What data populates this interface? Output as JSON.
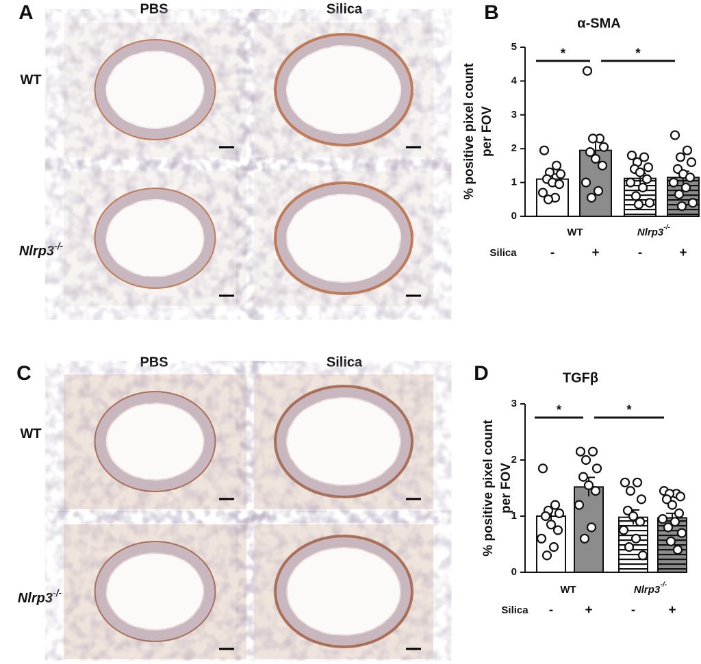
{
  "panels": [
    {
      "letter": "A",
      "columns": [
        "PBS",
        "Silica"
      ],
      "rows": [
        {
          "label": "WT"
        },
        {
          "label": "Nlrp3",
          "superscript": "-/-"
        }
      ]
    },
    {
      "letter": "C",
      "columns": [
        "PBS",
        "Silica"
      ],
      "rows": [
        {
          "label": "WT"
        },
        {
          "label": "Nlrp3",
          "superscript": "-/-"
        }
      ]
    }
  ],
  "chart_data": [
    {
      "type": "bar",
      "panel": "B",
      "title": "α-SMA",
      "ylabel": [
        "% positive pixel count",
        "per FOV"
      ],
      "ylim": [
        0,
        5
      ],
      "yticks": [
        0,
        1,
        2,
        3,
        4,
        5
      ],
      "row_label": "Silica",
      "categories": [
        "-",
        "+",
        "-",
        "+"
      ],
      "groups": [
        {
          "label": "WT"
        },
        {
          "label": "Nlrp3",
          "superscript": "-/-"
        }
      ],
      "values": [
        1.1,
        1.95,
        1.12,
        1.15
      ],
      "errors": [
        0.15,
        0.28,
        0.15,
        0.18
      ],
      "points": [
        [
          1.95,
          1.5,
          1.3,
          1.25,
          1.1,
          1.0,
          0.95,
          0.7,
          0.55,
          0.5
        ],
        [
          4.3,
          2.3,
          2.3,
          2.05,
          1.9,
          1.7,
          1.5,
          1.0,
          0.75,
          0.55
        ],
        [
          1.8,
          1.75,
          1.6,
          1.45,
          1.4,
          1.3,
          1.1,
          1.0,
          0.85,
          0.6,
          0.4,
          0.35
        ],
        [
          2.4,
          1.95,
          1.75,
          1.6,
          1.4,
          1.25,
          1.15,
          1.0,
          0.85,
          0.65,
          0.4,
          0.3
        ]
      ],
      "colors": [
        "#ffffff",
        "#8c8c8c",
        "#ffffff",
        "#8c8c8c"
      ],
      "hatch": [
        false,
        false,
        true,
        true
      ],
      "significance": [
        "*",
        "*"
      ]
    },
    {
      "type": "bar",
      "panel": "D",
      "title": "TGFβ",
      "ylabel": [
        "% positive pixel count",
        "per FOV"
      ],
      "ylim": [
        0,
        3
      ],
      "yticks": [
        0,
        1,
        2,
        3
      ],
      "row_label": "Silica",
      "categories": [
        "-",
        "+",
        "-",
        "+"
      ],
      "groups": [
        {
          "label": "WT"
        },
        {
          "label": "Nlrp3",
          "superscript": "-/-"
        }
      ],
      "values": [
        1.0,
        1.52,
        0.98,
        0.97
      ],
      "errors": [
        0.13,
        0.17,
        0.13,
        0.08
      ],
      "points": [
        [
          1.85,
          1.2,
          1.1,
          1.05,
          1.0,
          0.85,
          0.75,
          0.6,
          0.45,
          0.3
        ],
        [
          2.15,
          2.15,
          2.0,
          1.85,
          1.7,
          1.55,
          1.45,
          1.2,
          0.8,
          0.6
        ],
        [
          1.6,
          1.6,
          1.45,
          1.3,
          1.1,
          1.0,
          0.9,
          0.75,
          0.6,
          0.45,
          0.3
        ],
        [
          1.45,
          1.4,
          1.4,
          1.35,
          1.3,
          1.2,
          1.05,
          0.95,
          0.9,
          0.8,
          0.7,
          0.55,
          0.4
        ]
      ],
      "colors": [
        "#ffffff",
        "#8c8c8c",
        "#ffffff",
        "#8c8c8c"
      ],
      "hatch": [
        false,
        false,
        true,
        true
      ],
      "significance": [
        "*",
        "*"
      ]
    }
  ]
}
